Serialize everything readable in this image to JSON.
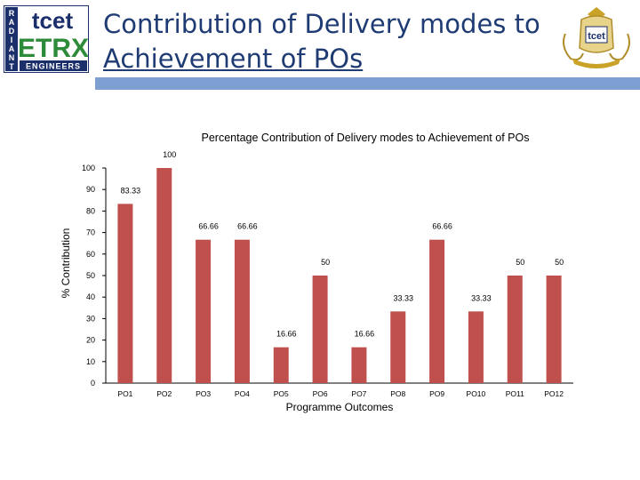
{
  "slide": {
    "title_line1": "Contribution of Delivery modes to",
    "title_line2": "Achievement of POs",
    "logo_left": {
      "letters_vertical": [
        "R",
        "A",
        "D",
        "I",
        "A",
        "N",
        "T"
      ],
      "brand": "tcet",
      "name": "ETRX",
      "subtitle": "ENGINEERS"
    },
    "logo_right": {
      "brand": "tcet"
    },
    "colors": {
      "title": "#1f3b73",
      "rule": "#7e9fd2",
      "bar": "#c0504d",
      "logo_green": "#2e8b3a",
      "logo_navy": "#1b2f6b"
    }
  },
  "chart_data": {
    "type": "bar",
    "title": "Percentage Contribution of Delivery modes to Achievement of POs",
    "xlabel": "Programme  Outcomes",
    "ylabel": "% Contribution",
    "categories": [
      "PO1",
      "PO2",
      "PO3",
      "PO4",
      "PO5",
      "PO6",
      "PO7",
      "PO8",
      "PO9",
      "PO10",
      "PO11",
      "PO12"
    ],
    "values": [
      83.33,
      100,
      66.66,
      66.66,
      16.66,
      50,
      16.66,
      33.33,
      66.66,
      33.33,
      50,
      50
    ],
    "ylim": [
      0,
      100
    ],
    "yticks": [
      0,
      10,
      20,
      30,
      40,
      50,
      60,
      70,
      80,
      90,
      100
    ],
    "grid": false,
    "legend": "none",
    "bar_color": "#c0504d"
  }
}
